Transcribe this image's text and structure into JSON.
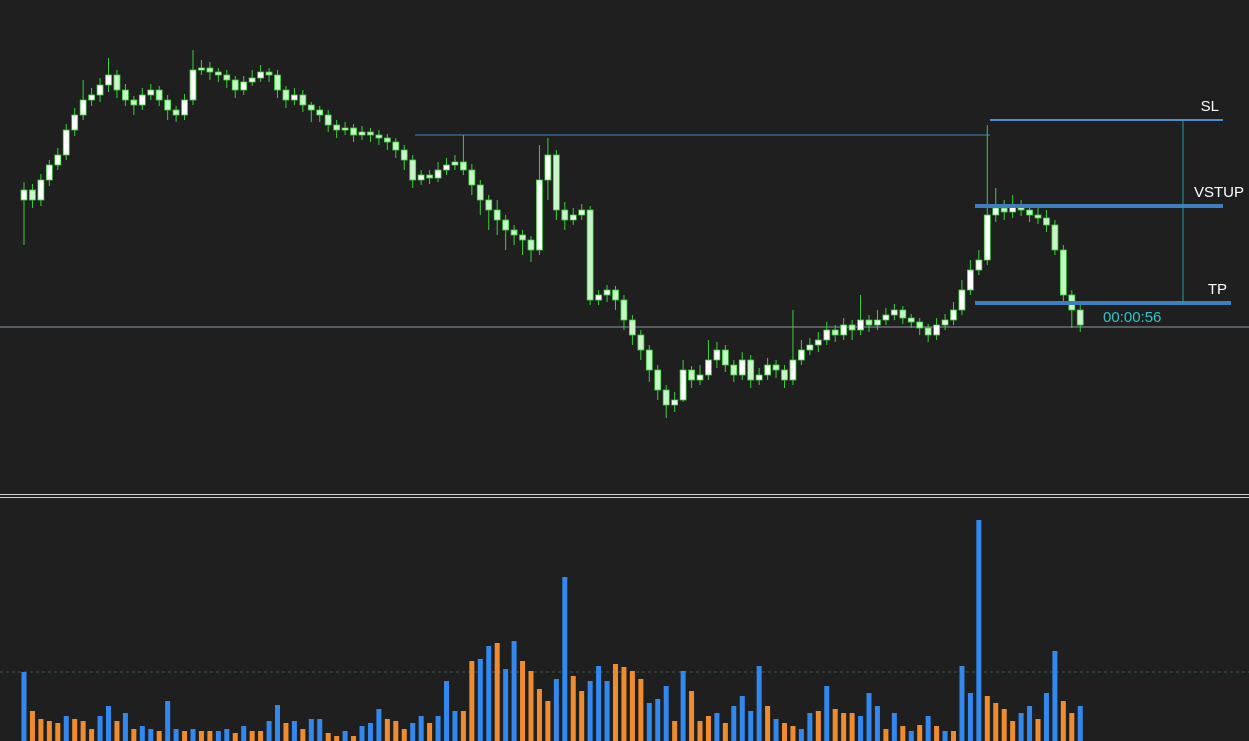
{
  "chart_data": {
    "type": "candlestick",
    "ylim": [
      5,
      500
    ],
    "up_color": "#ffffff",
    "down_color": "#c8f5c8",
    "wick_color": "#3ad03a",
    "ohlc": [
      [
        300,
        318,
        255,
        310
      ],
      [
        310,
        316,
        292,
        300
      ],
      [
        300,
        326,
        294,
        320
      ],
      [
        320,
        340,
        314,
        335
      ],
      [
        335,
        352,
        330,
        345
      ],
      [
        345,
        376,
        340,
        370
      ],
      [
        370,
        392,
        364,
        385
      ],
      [
        385,
        420,
        380,
        400
      ],
      [
        400,
        412,
        394,
        405
      ],
      [
        405,
        422,
        398,
        415
      ],
      [
        415,
        442,
        408,
        425
      ],
      [
        425,
        430,
        402,
        410
      ],
      [
        410,
        416,
        394,
        400
      ],
      [
        400,
        404,
        385,
        395
      ],
      [
        395,
        412,
        390,
        405
      ],
      [
        405,
        416,
        400,
        410
      ],
      [
        410,
        414,
        394,
        400
      ],
      [
        400,
        405,
        380,
        390
      ],
      [
        390,
        394,
        378,
        385
      ],
      [
        385,
        406,
        380,
        400
      ],
      [
        400,
        450,
        395,
        430
      ],
      [
        430,
        440,
        425,
        432
      ],
      [
        432,
        438,
        420,
        428
      ],
      [
        428,
        432,
        418,
        425
      ],
      [
        425,
        430,
        412,
        420
      ],
      [
        420,
        424,
        402,
        410
      ],
      [
        410,
        424,
        405,
        418
      ],
      [
        418,
        430,
        414,
        422
      ],
      [
        422,
        435,
        418,
        428
      ],
      [
        428,
        432,
        418,
        425
      ],
      [
        425,
        430,
        402,
        410
      ],
      [
        410,
        414,
        392,
        400
      ],
      [
        400,
        412,
        395,
        405
      ],
      [
        405,
        410,
        388,
        395
      ],
      [
        395,
        398,
        378,
        390
      ],
      [
        390,
        394,
        378,
        385
      ],
      [
        385,
        390,
        368,
        375
      ],
      [
        375,
        380,
        362,
        370
      ],
      [
        370,
        378,
        365,
        372
      ],
      [
        372,
        376,
        358,
        365
      ],
      [
        365,
        374,
        360,
        368
      ],
      [
        368,
        372,
        358,
        365
      ],
      [
        365,
        370,
        355,
        362
      ],
      [
        362,
        366,
        350,
        358
      ],
      [
        358,
        362,
        342,
        350
      ],
      [
        350,
        355,
        330,
        340
      ],
      [
        340,
        345,
        312,
        320
      ],
      [
        320,
        330,
        315,
        325
      ],
      [
        325,
        330,
        316,
        322
      ],
      [
        322,
        338,
        318,
        330
      ],
      [
        330,
        342,
        325,
        335
      ],
      [
        335,
        345,
        330,
        338
      ],
      [
        338,
        365,
        325,
        330
      ],
      [
        330,
        336,
        305,
        315
      ],
      [
        315,
        320,
        285,
        300
      ],
      [
        300,
        305,
        270,
        290
      ],
      [
        290,
        300,
        265,
        280
      ],
      [
        280,
        285,
        250,
        270
      ],
      [
        270,
        275,
        255,
        265
      ],
      [
        265,
        270,
        245,
        260
      ],
      [
        260,
        264,
        238,
        250
      ],
      [
        250,
        355,
        245,
        320
      ],
      [
        320,
        362,
        300,
        345
      ],
      [
        345,
        350,
        280,
        290
      ],
      [
        290,
        298,
        270,
        280
      ],
      [
        280,
        292,
        275,
        285
      ],
      [
        285,
        296,
        280,
        290
      ],
      [
        290,
        294,
        195,
        200
      ],
      [
        200,
        210,
        195,
        205
      ],
      [
        205,
        215,
        198,
        210
      ],
      [
        210,
        214,
        190,
        200
      ],
      [
        200,
        205,
        170,
        180
      ],
      [
        180,
        185,
        155,
        165
      ],
      [
        165,
        170,
        140,
        150
      ],
      [
        150,
        155,
        118,
        130
      ],
      [
        130,
        135,
        100,
        110
      ],
      [
        110,
        115,
        82,
        95
      ],
      [
        95,
        108,
        88,
        100
      ],
      [
        100,
        140,
        98,
        130
      ],
      [
        130,
        134,
        112,
        120
      ],
      [
        120,
        135,
        115,
        125
      ],
      [
        125,
        160,
        120,
        140
      ],
      [
        140,
        158,
        132,
        150
      ],
      [
        150,
        155,
        128,
        135
      ],
      [
        135,
        140,
        118,
        125
      ],
      [
        125,
        148,
        120,
        140
      ],
      [
        140,
        145,
        112,
        120
      ],
      [
        120,
        132,
        115,
        125
      ],
      [
        125,
        142,
        120,
        135
      ],
      [
        135,
        140,
        122,
        130
      ],
      [
        130,
        135,
        112,
        120
      ],
      [
        120,
        190,
        115,
        140
      ],
      [
        140,
        160,
        135,
        150
      ],
      [
        150,
        162,
        145,
        155
      ],
      [
        155,
        168,
        148,
        160
      ],
      [
        160,
        178,
        155,
        170
      ],
      [
        170,
        175,
        158,
        165
      ],
      [
        165,
        182,
        160,
        175
      ],
      [
        175,
        180,
        160,
        170
      ],
      [
        170,
        205,
        165,
        180
      ],
      [
        180,
        185,
        168,
        175
      ],
      [
        175,
        190,
        170,
        180
      ],
      [
        180,
        192,
        175,
        185
      ],
      [
        185,
        196,
        180,
        190
      ],
      [
        190,
        194,
        176,
        182
      ],
      [
        182,
        186,
        172,
        178
      ],
      [
        178,
        182,
        165,
        172
      ],
      [
        172,
        176,
        158,
        165
      ],
      [
        165,
        182,
        160,
        175
      ],
      [
        175,
        186,
        170,
        180
      ],
      [
        180,
        198,
        175,
        190
      ],
      [
        190,
        220,
        185,
        210
      ],
      [
        210,
        240,
        205,
        230
      ],
      [
        230,
        250,
        225,
        240
      ],
      [
        240,
        375,
        235,
        285
      ],
      [
        285,
        312,
        278,
        292
      ],
      [
        292,
        300,
        280,
        288
      ],
      [
        288,
        305,
        282,
        295
      ],
      [
        295,
        300,
        284,
        290
      ],
      [
        290,
        296,
        278,
        285
      ],
      [
        285,
        292,
        276,
        282
      ],
      [
        282,
        290,
        268,
        275
      ],
      [
        275,
        280,
        245,
        250
      ],
      [
        250,
        255,
        195,
        205
      ],
      [
        205,
        210,
        172,
        190
      ],
      [
        190,
        195,
        168,
        175
      ]
    ],
    "levels": [
      {
        "label": "SL",
        "value": 380,
        "color": "#4a90d0"
      },
      {
        "label": "VSTUP",
        "value": 294,
        "color": "#3f7fbf"
      },
      {
        "label": "TP",
        "value": 197,
        "color": "#3f7fbf"
      }
    ],
    "high_line": 365,
    "current_price": 173,
    "countdown": "00:00:56",
    "volume": {
      "ylim": [
        0,
        244
      ],
      "level": 69,
      "values": [
        69,
        30,
        22,
        20,
        18,
        25,
        22,
        20,
        12,
        25,
        35,
        20,
        28,
        12,
        15,
        12,
        10,
        40,
        12,
        10,
        12,
        10,
        10,
        10,
        12,
        8,
        15,
        10,
        10,
        20,
        36,
        18,
        20,
        12,
        22,
        22,
        8,
        5,
        10,
        5,
        15,
        18,
        32,
        22,
        20,
        12,
        18,
        25,
        18,
        25,
        60,
        30,
        30,
        80,
        82,
        95,
        98,
        72,
        100,
        80,
        70,
        52,
        40,
        62,
        164,
        65,
        50,
        60,
        75,
        60,
        77,
        74,
        70,
        62,
        38,
        42,
        55,
        20,
        70,
        50,
        20,
        25,
        28,
        18,
        35,
        45,
        30,
        75,
        35,
        22,
        18,
        15,
        12,
        28,
        30,
        55,
        32,
        28,
        28,
        25,
        48,
        35,
        12,
        28,
        15,
        10,
        16,
        25,
        15,
        10,
        10,
        75,
        48,
        221,
        45,
        38,
        32,
        20,
        28,
        35,
        22,
        48,
        90,
        40,
        28,
        35
      ],
      "colors": [
        "#3388ee",
        "#f08c30",
        "#f08c30",
        "#f08c30",
        "#f08c30",
        "#3388ee",
        "#f08c30",
        "#f08c30",
        "#f08c30",
        "#3388ee",
        "#3388ee",
        "#f08c30",
        "#3388ee",
        "#f08c30",
        "#3388ee",
        "#3388ee",
        "#f08c30",
        "#3388ee",
        "#3388ee",
        "#f08c30",
        "#3388ee",
        "#f08c30",
        "#f08c30",
        "#3388ee",
        "#3388ee",
        "#f08c30",
        "#3388ee",
        "#f08c30",
        "#f08c30",
        "#3388ee",
        "#3388ee",
        "#f08c30",
        "#3388ee",
        "#f08c30",
        "#3388ee",
        "#3388ee",
        "#f08c30",
        "#f08c30",
        "#3388ee",
        "#f08c30",
        "#3388ee",
        "#3388ee",
        "#3388ee",
        "#f08c30",
        "#f08c30",
        "#f08c30",
        "#3388ee",
        "#3388ee",
        "#f08c30",
        "#3388ee",
        "#3388ee",
        "#3388ee",
        "#f08c30",
        "#f08c30",
        "#3388ee",
        "#3388ee",
        "#f08c30",
        "#3388ee",
        "#3388ee",
        "#f08c30",
        "#f08c30",
        "#f08c30",
        "#f08c30",
        "#3388ee",
        "#3388ee",
        "#f08c30",
        "#f08c30",
        "#3388ee",
        "#3388ee",
        "#3388ee",
        "#f08c30",
        "#f08c30",
        "#f08c30",
        "#f08c30",
        "#3388ee",
        "#3388ee",
        "#3388ee",
        "#f08c30",
        "#3388ee",
        "#f08c30",
        "#f08c30",
        "#f08c30",
        "#3388ee",
        "#f08c30",
        "#3388ee",
        "#3388ee",
        "#3388ee",
        "#3388ee",
        "#f08c30",
        "#3388ee",
        "#f08c30",
        "#f08c30",
        "#3388ee",
        "#3388ee",
        "#f08c30",
        "#3388ee",
        "#f08c30",
        "#f08c30",
        "#f08c30",
        "#3388ee",
        "#3388ee",
        "#3388ee",
        "#f08c30",
        "#3388ee",
        "#f08c30",
        "#3388ee",
        "#f08c30",
        "#3388ee",
        "#f08c30",
        "#3388ee",
        "#f08c30",
        "#3388ee",
        "#3388ee",
        "#3388ee",
        "#f08c30",
        "#f08c30",
        "#f08c30",
        "#f08c30",
        "#3388ee",
        "#3388ee",
        "#f08c30",
        "#3388ee",
        "#3388ee",
        "#f08c30",
        "#f08c30",
        "#3388ee"
      ]
    }
  }
}
